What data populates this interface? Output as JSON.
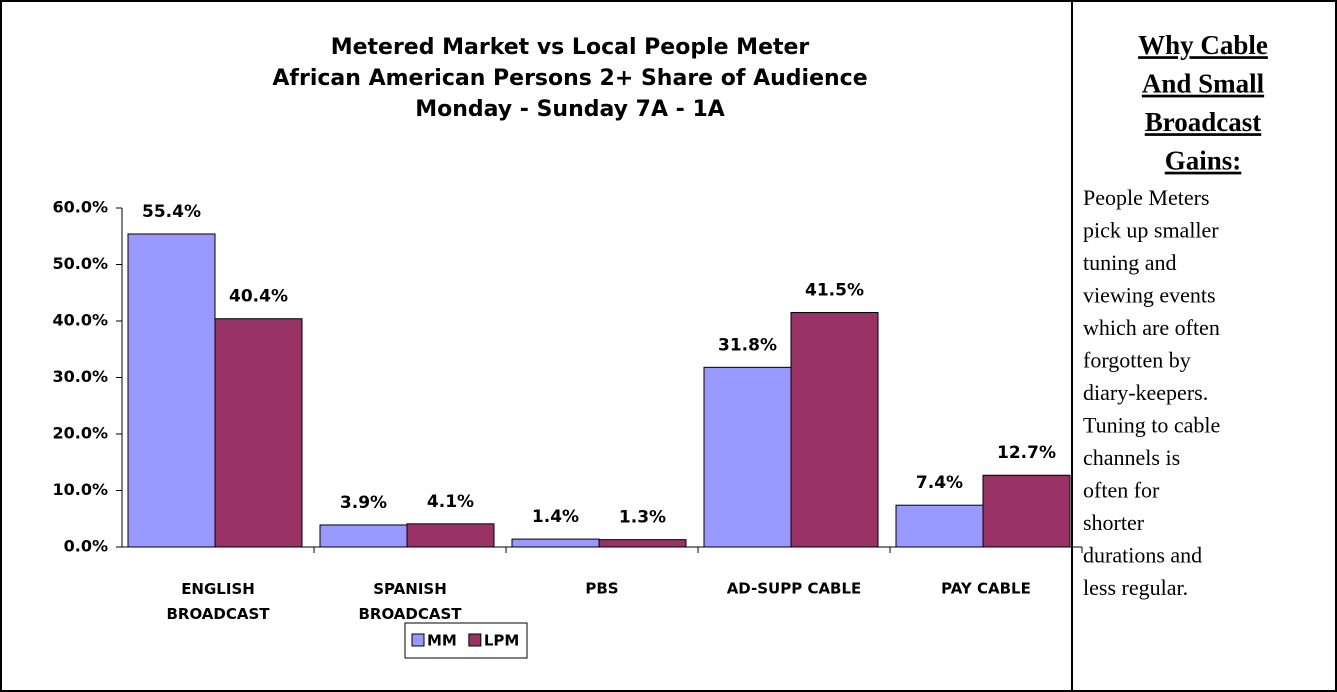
{
  "chart_data": {
    "type": "bar",
    "title": [
      "Metered Market vs Local People Meter",
      "African American Persons 2+ Share of Audience",
      "Monday - Sunday 7A - 1A"
    ],
    "categories": [
      "ENGLISH\nBROADCAST",
      "SPANISH\nBROADCAST",
      "PBS",
      "AD-SUPP CABLE",
      "PAY CABLE"
    ],
    "series": [
      {
        "name": "MM",
        "color": "#9999ff",
        "values": [
          55.4,
          3.9,
          1.4,
          31.8,
          7.4
        ],
        "value_labels": [
          "55.4%",
          "3.9%",
          "1.4%",
          "31.8%",
          "7.4%"
        ]
      },
      {
        "name": "LPM",
        "color": "#993366",
        "values": [
          40.4,
          4.1,
          1.3,
          41.5,
          12.7
        ],
        "value_labels": [
          "40.4%",
          "4.1%",
          "1.3%",
          "41.5%",
          "12.7%"
        ]
      }
    ],
    "ylim": [
      0,
      60
    ],
    "yticks": [
      {
        "value": 0,
        "label": "0.0%"
      },
      {
        "value": 10,
        "label": "10.0%"
      },
      {
        "value": 20,
        "label": "20.0%"
      },
      {
        "value": 30,
        "label": "30.0%"
      },
      {
        "value": 40,
        "label": "40.0%"
      },
      {
        "value": 50,
        "label": "50.0%"
      },
      {
        "value": 60,
        "label": "60.0%"
      }
    ],
    "grid": false,
    "legend": "bottom"
  },
  "side_panel": {
    "heading": [
      "Why Cable",
      "And Small",
      "Broadcast",
      "Gains:"
    ],
    "body": [
      "People Meters",
      "pick up smaller",
      "tuning and",
      "viewing events",
      "which are often",
      "forgotten by",
      "diary-keepers.",
      "Tuning to cable",
      "channels is",
      "often for",
      "shorter",
      "durations and",
      "less regular."
    ]
  }
}
